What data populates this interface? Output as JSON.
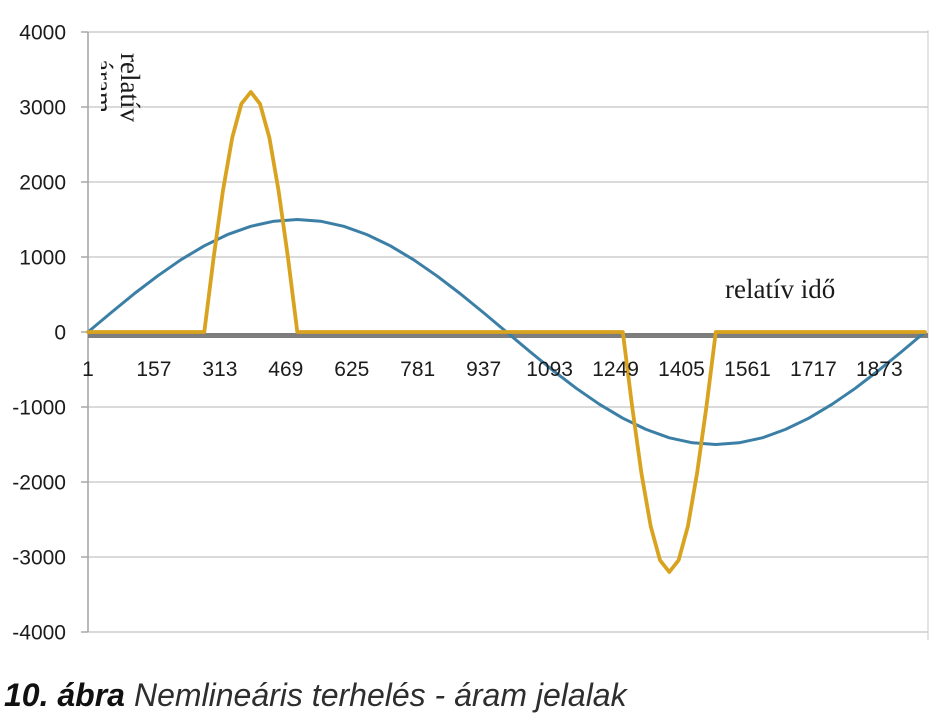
{
  "chart_data": {
    "type": "line",
    "xlabel": "relatív idő",
    "ylabel_lines": [
      "relatív",
      "áram"
    ],
    "xlim": [
      1,
      1981
    ],
    "ylim": [
      -4000,
      4000
    ],
    "grid": true,
    "x_tick_labels": [
      "1",
      "157",
      "313",
      "469",
      "625",
      "781",
      "937",
      "1093",
      "1249",
      "1405",
      "1561",
      "1717",
      "1873"
    ],
    "y_tick_labels": [
      "4000",
      "3000",
      "2000",
      "1000",
      "0",
      "-1000",
      "-2000",
      "-3000",
      "-4000"
    ],
    "series": [
      {
        "color": "#3b7fa7",
        "x": [
          1,
          56,
          111,
          166,
          221,
          276,
          331,
          386,
          441,
          496,
          551,
          606,
          661,
          716,
          771,
          826,
          881,
          936,
          991,
          1046,
          1101,
          1156,
          1211,
          1266,
          1321,
          1376,
          1431,
          1486,
          1541,
          1596,
          1651,
          1706,
          1761,
          1816,
          1871,
          1926,
          1981
        ],
        "y": [
          0,
          260,
          513,
          750,
          964,
          1149,
          1299,
          1410,
          1477,
          1500,
          1477,
          1410,
          1299,
          1149,
          964,
          750,
          513,
          260,
          0,
          -260,
          -513,
          -750,
          -964,
          -1149,
          -1299,
          -1410,
          -1477,
          -1500,
          -1477,
          -1410,
          -1299,
          -1149,
          -964,
          -750,
          -513,
          -260,
          0
        ]
      },
      {
        "color": "#d9a31f",
        "x": [
          1,
          276,
          298,
          320,
          342,
          364,
          386,
          408,
          430,
          452,
          474,
          496,
          1266,
          1288,
          1310,
          1332,
          1354,
          1376,
          1398,
          1420,
          1442,
          1464,
          1486,
          1981
        ],
        "y": [
          0,
          0,
          989,
          1881,
          2589,
          3043,
          3200,
          3043,
          2589,
          1881,
          989,
          0,
          0,
          -989,
          -1881,
          -2589,
          -3043,
          -3200,
          -3043,
          -2589,
          -1881,
          -989,
          0,
          0
        ]
      }
    ]
  },
  "figure_caption": {
    "number": "10. ábra",
    "text": "Nemlineáris terhelés - áram jelalak"
  }
}
